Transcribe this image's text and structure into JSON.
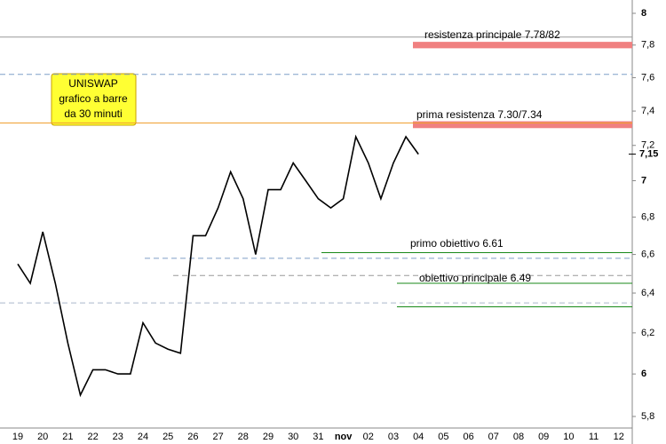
{
  "chart_data": {
    "type": "line",
    "categories": [
      "19",
      null,
      "20",
      null,
      "21",
      null,
      "22",
      null,
      "23",
      null,
      "24",
      null,
      "25",
      null,
      "26",
      null,
      "27",
      null,
      "28",
      null,
      "29",
      null,
      "30",
      null,
      "31",
      null,
      "nov",
      null,
      "02",
      null,
      "03",
      null,
      "04",
      null,
      "05",
      null,
      "06",
      null,
      "07",
      null,
      "08",
      null,
      "09",
      null,
      "10",
      null,
      "11",
      null,
      "12",
      null
    ],
    "series": [
      {
        "name": "UNISWAP",
        "color": "#000000",
        "values": [
          6.55,
          6.45,
          6.72,
          6.45,
          6.15,
          5.9,
          6.02,
          6.02,
          6.0,
          6.0,
          6.25,
          6.15,
          6.12,
          6.1,
          6.7,
          6.7,
          6.85,
          7.05,
          6.9,
          6.6,
          6.95,
          6.95,
          7.1,
          7.0,
          6.9,
          6.85,
          6.9,
          7.25,
          7.1,
          6.9,
          7.1,
          7.25,
          7.15,
          null,
          null,
          null,
          null,
          null,
          null,
          null,
          null,
          null,
          null,
          null,
          null,
          null,
          null,
          null,
          null,
          null
        ]
      }
    ],
    "log_scale": true,
    "ylim": [
      5.8,
      8
    ],
    "yticks": [
      {
        "value": 5.8,
        "label": "5,8"
      },
      6,
      {
        "value": 6.2,
        "label": "6,2"
      },
      {
        "value": 6.4,
        "label": "6,4"
      },
      {
        "value": 6.6,
        "label": "6,6"
      },
      {
        "value": 6.8,
        "label": "6,8"
      },
      7,
      {
        "value": 7.2,
        "label": "7,2"
      },
      {
        "value": 7.4,
        "label": "7,4"
      },
      {
        "value": 7.6,
        "label": "7,6"
      },
      {
        "value": 7.8,
        "label": "7,8"
      },
      8
    ],
    "last_price": {
      "value": 7.15,
      "label": "7,15"
    },
    "levels": [
      {
        "value": 7.85,
        "color": "#999999",
        "style": "solid"
      },
      {
        "value": 7.62,
        "color": "#7f9fc8",
        "style": "dashed"
      },
      {
        "value": 7.33,
        "color": "#f0a030",
        "style": "solid"
      },
      {
        "value": 6.58,
        "color": "#7f9fc8",
        "style": "dashed"
      },
      {
        "value": 6.49,
        "color": "#999999",
        "style": "dashed"
      },
      {
        "value": 6.35,
        "color": "#aab8cc",
        "style": "dashed"
      },
      {
        "value": 6.61,
        "color": "#1a8a1a",
        "style": "solid"
      },
      {
        "value": 6.45,
        "color": "#1a8a1a",
        "style": "solid"
      },
      {
        "value": 6.33,
        "color": "#1a8a1a",
        "style": "solid"
      }
    ],
    "zones": [
      {
        "from": 7.78,
        "to": 7.82,
        "color": "#f08080"
      },
      {
        "from": 7.3,
        "to": 7.34,
        "color": "#f08080"
      }
    ],
    "annotations": [
      "resistenza principale 7.78/82",
      "prima resistenza 7.30/7.34",
      "primo obiettivo 6.61",
      "obiettivo principale 6.49"
    ],
    "title_box": [
      "UNISWAP",
      "grafico a barre",
      "da 30 minuti"
    ]
  }
}
